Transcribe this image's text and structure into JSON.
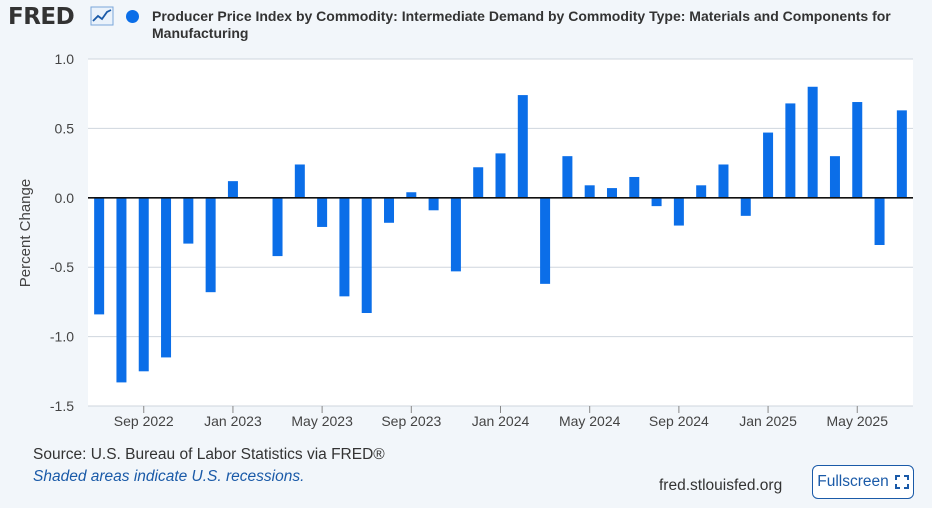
{
  "header": {
    "logo_text": "FRED",
    "logo_icon": "line-chart-icon",
    "title": "Producer Price Index by Commodity: Intermediate Demand by Commodity Type: Materials and Components for Manufacturing"
  },
  "colors": {
    "bar": "#0b6ee8",
    "background": "#f2f6fa",
    "plot": "#ffffff",
    "accent": "#1a5aa8"
  },
  "footer": {
    "source": "Source: U.S. Bureau of Labor Statistics via FRED®",
    "recession_note": "Shaded areas indicate U.S. recessions.",
    "site": "fred.stlouisfed.org",
    "fullscreen_label": "Fullscreen",
    "fullscreen_icon": "expand-icon"
  },
  "chart_data": {
    "type": "bar",
    "title": "Producer Price Index by Commodity: Intermediate Demand by Commodity Type: Materials and Components for Manufacturing",
    "ylabel": "Percent Change",
    "ylim": [
      -1.5,
      1.0
    ],
    "yticks": [
      "1.0",
      "0.5",
      "0.0",
      "-0.5",
      "-1.0",
      "-1.5"
    ],
    "ytick_values": [
      1.0,
      0.5,
      0.0,
      -0.5,
      -1.0,
      -1.5
    ],
    "xticks": [
      "Sep 2022",
      "Jan 2023",
      "May 2023",
      "Sep 2023",
      "Jan 2024",
      "May 2024",
      "Sep 2024",
      "Jan 2025",
      "May 2025"
    ],
    "xtick_month_index": [
      2,
      6,
      10,
      14,
      18,
      22,
      26,
      30,
      34
    ],
    "grid": true,
    "categories": [
      "2022-07",
      "2022-08",
      "2022-09",
      "2022-10",
      "2022-11",
      "2022-12",
      "2023-01",
      "2023-02",
      "2023-03",
      "2023-04",
      "2023-05",
      "2023-06",
      "2023-07",
      "2023-08",
      "2023-09",
      "2023-10",
      "2023-11",
      "2023-12",
      "2024-01",
      "2024-02",
      "2024-03",
      "2024-04",
      "2024-05",
      "2024-06",
      "2024-07",
      "2024-08",
      "2024-09",
      "2024-10",
      "2024-11",
      "2024-12",
      "2025-01",
      "2025-02",
      "2025-03",
      "2025-04",
      "2025-05",
      "2025-06",
      "2025-07"
    ],
    "values": [
      -0.84,
      -1.33,
      -1.25,
      -1.15,
      -0.33,
      -0.68,
      0.12,
      0.0,
      -0.42,
      0.24,
      -0.21,
      -0.71,
      -0.83,
      -0.18,
      0.04,
      -0.09,
      -0.53,
      0.22,
      0.32,
      0.74,
      -0.62,
      0.3,
      0.09,
      0.07,
      0.15,
      -0.06,
      -0.2,
      0.09,
      0.24,
      -0.13,
      0.47,
      0.68,
      0.8,
      0.3,
      0.69,
      -0.34,
      0.63
    ]
  }
}
